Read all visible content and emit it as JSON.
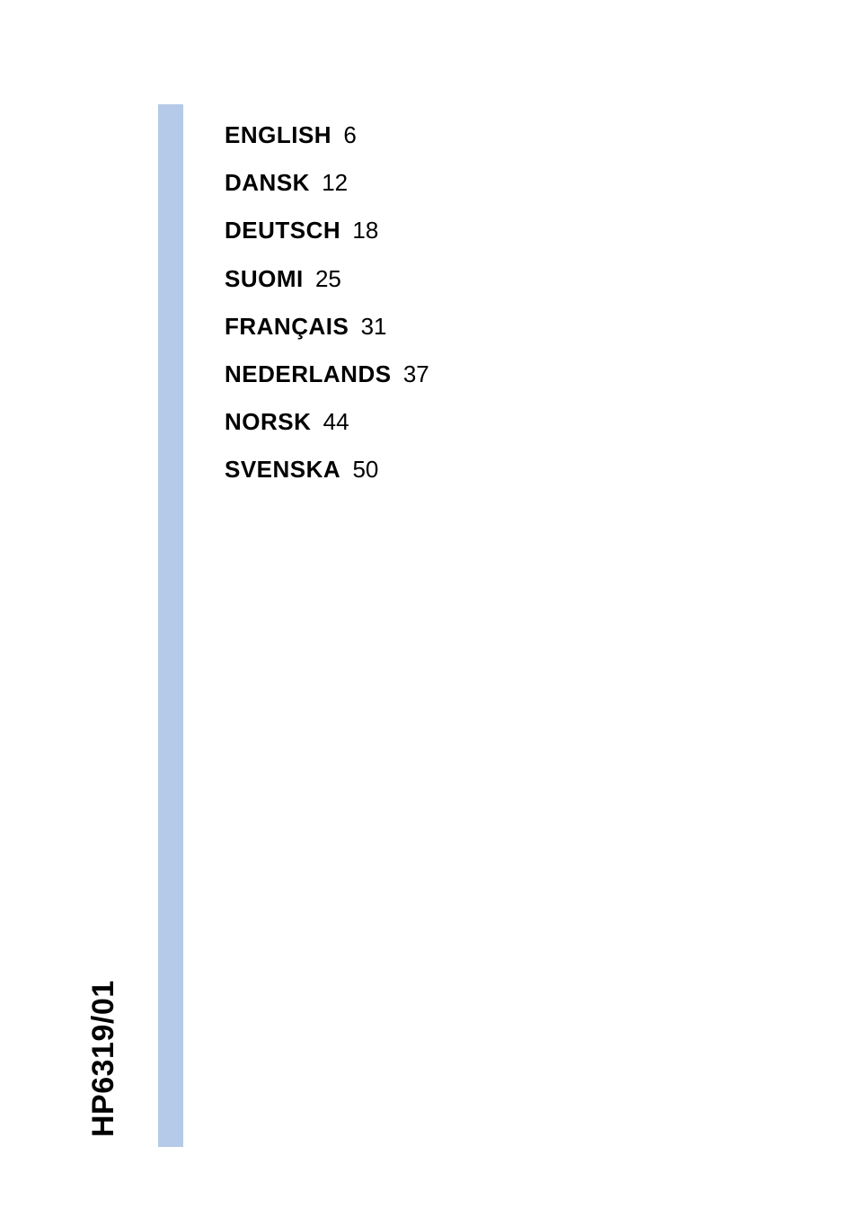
{
  "toc": {
    "items": [
      {
        "label": "ENGLISH",
        "page": "6"
      },
      {
        "label": "DANSK",
        "page": "12"
      },
      {
        "label": "DEUTSCH",
        "page": "18"
      },
      {
        "label": "SUOMI",
        "page": "25"
      },
      {
        "label": "FRANÇAIS",
        "page": "31"
      },
      {
        "label": "NEDERLANDS",
        "page": "37"
      },
      {
        "label": "NORSK",
        "page": "44"
      },
      {
        "label": "SVENSKA",
        "page": "50"
      }
    ]
  },
  "model_number": "HP6319/01",
  "colors": {
    "bar": "#b5cae9",
    "text": "#000000",
    "background": "#ffffff"
  }
}
